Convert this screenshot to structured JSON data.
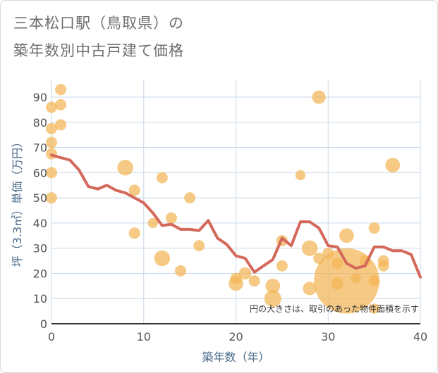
{
  "title_line1": "三本松口駅（鳥取県）の",
  "title_line2": "築年数別中古戸建て価格",
  "colors": {
    "line": "#d4685a",
    "bubble": "#f2b555",
    "grid": "#c8d7e6",
    "axis": "#333333"
  },
  "chart_data": {
    "type": "scatter",
    "xlabel": "築年数（年）",
    "ylabel": "坪（3.3㎡）単価（万円）",
    "xlim": [
      0,
      40
    ],
    "ylim": [
      0,
      97
    ],
    "xticks": [
      0,
      10,
      20,
      30,
      40
    ],
    "yticks": [
      0,
      10,
      20,
      30,
      40,
      50,
      60,
      70,
      80,
      90
    ],
    "grid": true,
    "note": "円の大きさは、取引のあった物件面積を示す",
    "line": {
      "x": [
        0,
        1,
        2,
        3,
        4,
        5,
        6,
        7,
        8,
        9,
        10,
        11,
        12,
        13,
        14,
        15,
        16,
        17,
        18,
        19,
        20,
        21,
        22,
        23,
        24,
        25,
        26,
        27,
        28,
        29,
        30,
        31,
        32,
        33,
        34,
        35,
        36,
        37,
        38,
        39,
        40
      ],
      "y": [
        67,
        66,
        65,
        61,
        54.5,
        53.5,
        55,
        53,
        52,
        50,
        48,
        44,
        39,
        39.5,
        37.5,
        37.5,
        37,
        41,
        34,
        31.5,
        27,
        26,
        20.5,
        23,
        25.5,
        34,
        31,
        40.5,
        40.5,
        38,
        31,
        30.5,
        24,
        22,
        23,
        30.5,
        30.5,
        29,
        29,
        27.5,
        18.5
      ]
    },
    "points": [
      {
        "x": 0,
        "y": 86,
        "s": 1
      },
      {
        "x": 0,
        "y": 77.5,
        "s": 1
      },
      {
        "x": 0,
        "y": 72,
        "s": 1
      },
      {
        "x": 0,
        "y": 67.5,
        "s": 1
      },
      {
        "x": 0,
        "y": 60,
        "s": 1
      },
      {
        "x": 0,
        "y": 50,
        "s": 1
      },
      {
        "x": 1,
        "y": 93,
        "s": 1
      },
      {
        "x": 1,
        "y": 87,
        "s": 1
      },
      {
        "x": 1,
        "y": 79,
        "s": 1
      },
      {
        "x": 8,
        "y": 62,
        "s": 1.4
      },
      {
        "x": 9,
        "y": 53,
        "s": 1
      },
      {
        "x": 9,
        "y": 36,
        "s": 1
      },
      {
        "x": 11,
        "y": 40,
        "s": 0.9
      },
      {
        "x": 12,
        "y": 58,
        "s": 1
      },
      {
        "x": 12,
        "y": 26,
        "s": 1.4
      },
      {
        "x": 13,
        "y": 42,
        "s": 1
      },
      {
        "x": 14,
        "y": 21,
        "s": 1
      },
      {
        "x": 15,
        "y": 50,
        "s": 1
      },
      {
        "x": 16,
        "y": 31,
        "s": 1
      },
      {
        "x": 20,
        "y": 18,
        "s": 1
      },
      {
        "x": 20,
        "y": 16,
        "s": 1.3
      },
      {
        "x": 21,
        "y": 20,
        "s": 1.1
      },
      {
        "x": 22,
        "y": 17,
        "s": 1
      },
      {
        "x": 24,
        "y": 15,
        "s": 1.3
      },
      {
        "x": 24,
        "y": 10,
        "s": 1.5
      },
      {
        "x": 25,
        "y": 33,
        "s": 1
      },
      {
        "x": 25,
        "y": 23,
        "s": 1
      },
      {
        "x": 27,
        "y": 59,
        "s": 0.9
      },
      {
        "x": 28,
        "y": 30,
        "s": 1.4
      },
      {
        "x": 28,
        "y": 14,
        "s": 1.2
      },
      {
        "x": 29,
        "y": 90,
        "s": 1.2
      },
      {
        "x": 29,
        "y": 26,
        "s": 1
      },
      {
        "x": 30,
        "y": 28,
        "s": 1
      },
      {
        "x": 31,
        "y": 24,
        "s": 1
      },
      {
        "x": 31,
        "y": 16,
        "s": 1.1
      },
      {
        "x": 32,
        "y": 17,
        "s": 5.8
      },
      {
        "x": 32,
        "y": 35,
        "s": 1.3
      },
      {
        "x": 33,
        "y": 18,
        "s": 0.9
      },
      {
        "x": 34,
        "y": 25,
        "s": 1
      },
      {
        "x": 35,
        "y": 38,
        "s": 1
      },
      {
        "x": 35,
        "y": 17,
        "s": 1
      },
      {
        "x": 35,
        "y": 6,
        "s": 0.9
      },
      {
        "x": 36,
        "y": 23,
        "s": 1
      },
      {
        "x": 36,
        "y": 25,
        "s": 1
      },
      {
        "x": 37,
        "y": 63,
        "s": 1.3
      }
    ]
  }
}
